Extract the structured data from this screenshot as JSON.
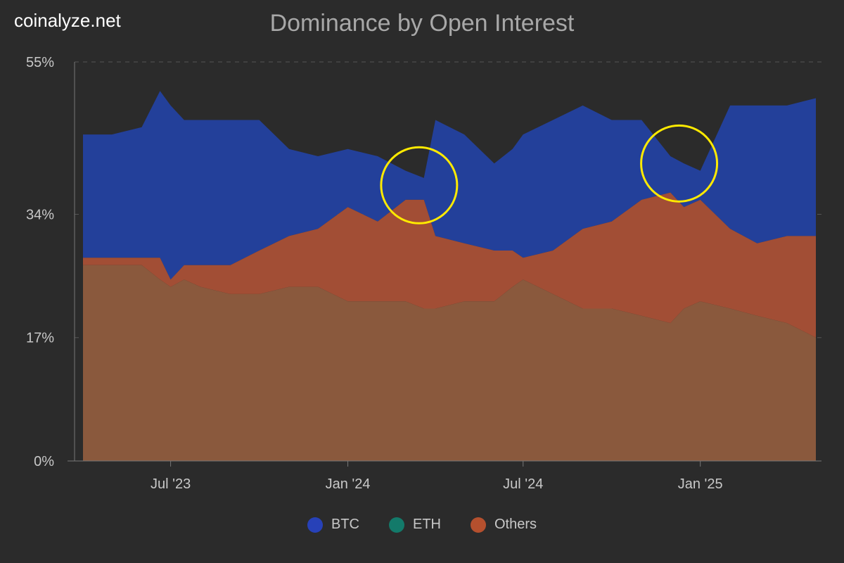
{
  "brand": "coinalyze.net",
  "chart_data": {
    "type": "area",
    "title": "Dominance by Open Interest",
    "xlabel": "",
    "ylabel": "",
    "y_unit": "%",
    "ylim": [
      0,
      55
    ],
    "yticks": [
      {
        "value": 0,
        "label": "0%"
      },
      {
        "value": 17,
        "label": "17%"
      },
      {
        "value": 34,
        "label": "34%"
      },
      {
        "value": 55,
        "label": "55%"
      }
    ],
    "xlim": [
      "2023-04-01",
      "2025-05-01"
    ],
    "xticks": [
      {
        "date": "2023-07-01",
        "label": "Jul '23"
      },
      {
        "date": "2024-01-01",
        "label": "Jan '24"
      },
      {
        "date": "2024-07-01",
        "label": "Jul '24"
      },
      {
        "date": "2025-01-01",
        "label": "Jan '25"
      }
    ],
    "x": [
      "2023-04-01",
      "2023-05-01",
      "2023-06-01",
      "2023-06-20",
      "2023-07-01",
      "2023-07-15",
      "2023-08-01",
      "2023-09-01",
      "2023-10-01",
      "2023-11-01",
      "2023-12-01",
      "2024-01-01",
      "2024-02-01",
      "2024-03-01",
      "2024-03-20",
      "2024-04-01",
      "2024-05-01",
      "2024-06-01",
      "2024-06-20",
      "2024-07-01",
      "2024-08-01",
      "2024-09-01",
      "2024-10-01",
      "2024-11-01",
      "2024-12-01",
      "2024-12-15",
      "2025-01-01",
      "2025-02-01",
      "2025-03-01",
      "2025-04-01",
      "2025-05-01"
    ],
    "series": [
      {
        "name": "BTC",
        "color": "#1f3a93",
        "values": [
          45,
          45,
          46,
          51,
          49,
          47,
          47,
          47,
          47,
          43,
          42,
          43,
          42,
          40,
          39,
          47,
          45,
          41,
          43,
          45,
          47,
          49,
          47,
          47,
          42,
          41,
          40,
          49,
          49,
          49,
          50
        ]
      },
      {
        "name": "ETH",
        "color": "#137a6a",
        "values": [
          28,
          28,
          28,
          28,
          25,
          27,
          27,
          27,
          29,
          31,
          32,
          35,
          33,
          36,
          36,
          31,
          30,
          29,
          29,
          28,
          29,
          32,
          33,
          36,
          37,
          35,
          36,
          32,
          30,
          31,
          31
        ]
      },
      {
        "name": "Others",
        "color": "#b5502e",
        "values": [
          27,
          27,
          27,
          25,
          24,
          25,
          24,
          23,
          23,
          24,
          24,
          22,
          22,
          22,
          21,
          21,
          22,
          22,
          24,
          25,
          23,
          21,
          21,
          20,
          19,
          21,
          22,
          21,
          20,
          19,
          17
        ]
      }
    ],
    "annotations": [
      {
        "type": "circle",
        "color": "#ffea00",
        "date": "2024-03-15",
        "value": 38
      },
      {
        "type": "circle",
        "color": "#ffea00",
        "date": "2024-12-10",
        "value": 41
      }
    ],
    "legend": {
      "position": "bottom",
      "items": [
        "BTC",
        "ETH",
        "Others"
      ]
    },
    "grid": {
      "horizontal": true,
      "vertical": false
    }
  }
}
